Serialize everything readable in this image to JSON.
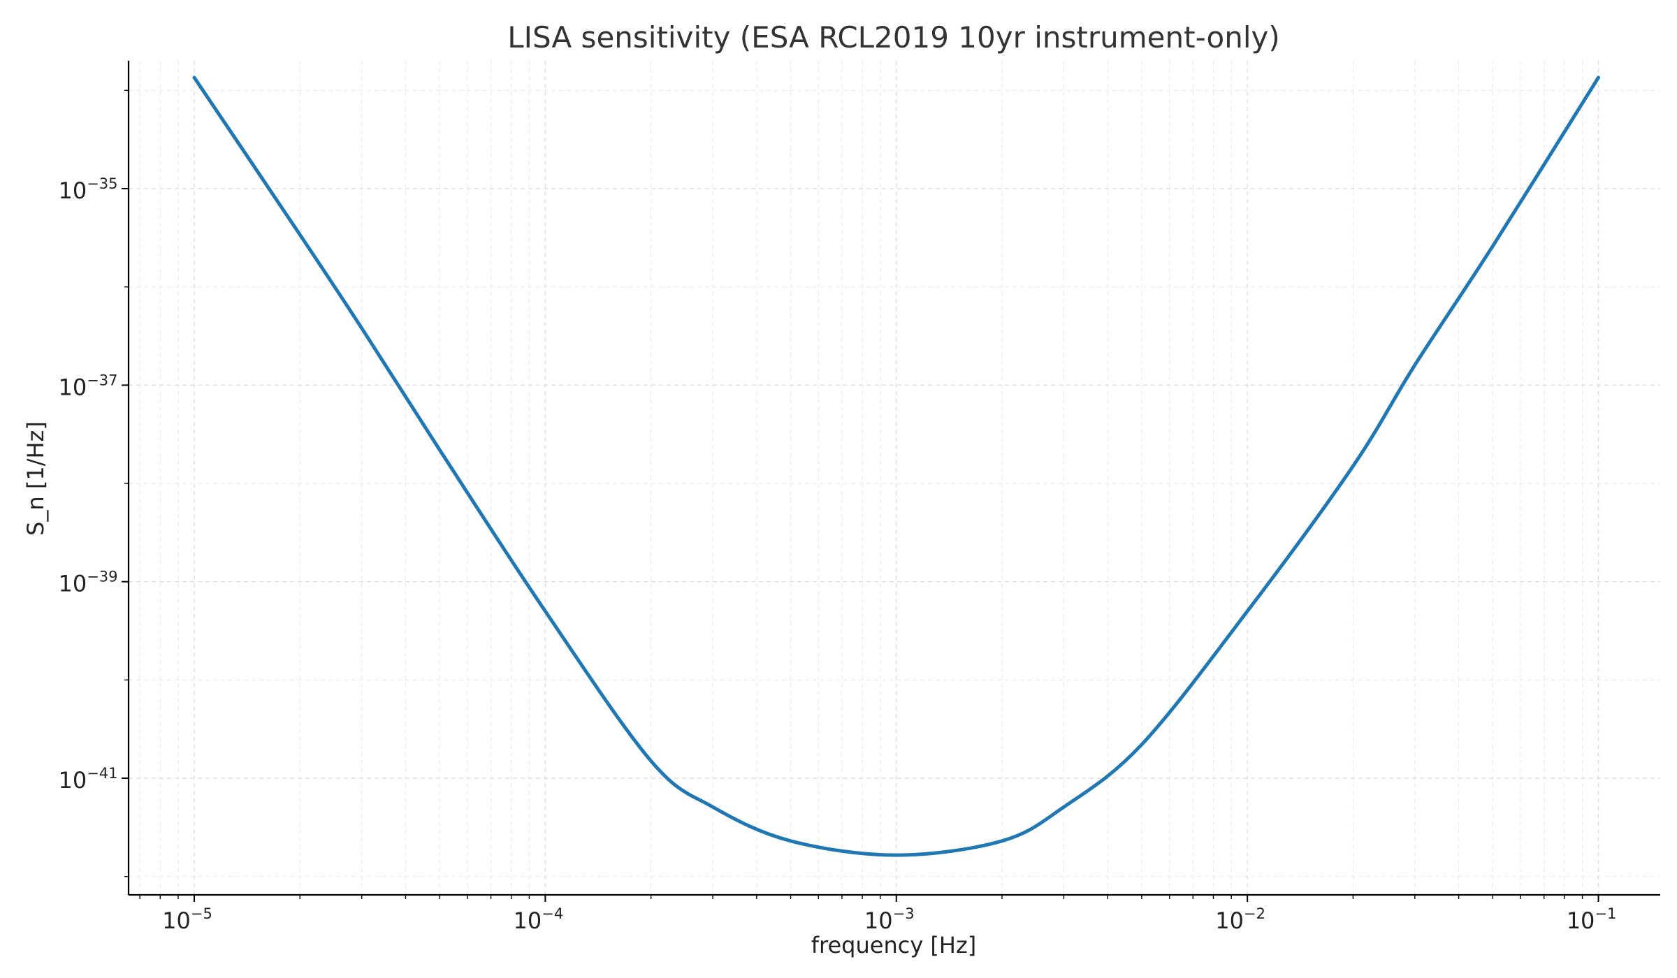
{
  "chart_data": {
    "type": "line",
    "title": "LISA sensitivity (ESA RCL2019 10yr instrument-only)",
    "xlabel": "frequency [Hz]",
    "ylabel": "S_n [1/Hz]",
    "xscale": "log",
    "yscale": "log",
    "xlim": [
      6.5e-06,
      0.15
    ],
    "ylim": [
      6.5e-43,
      2e-34
    ],
    "grid": true,
    "x_ticks": [
      {
        "value": 1e-05,
        "base": "10",
        "exp": "−5"
      },
      {
        "value": 0.0001,
        "base": "10",
        "exp": "−4"
      },
      {
        "value": 0.001,
        "base": "10",
        "exp": "−3"
      },
      {
        "value": 0.01,
        "base": "10",
        "exp": "−2"
      },
      {
        "value": 0.1,
        "base": "10",
        "exp": "−1"
      }
    ],
    "y_ticks": [
      {
        "value": 1e-35,
        "base": "10",
        "exp": "−35"
      },
      {
        "value": 1e-37,
        "base": "10",
        "exp": "−37"
      },
      {
        "value": 1e-39,
        "base": "10",
        "exp": "−39"
      },
      {
        "value": 1e-41,
        "base": "10",
        "exp": "−41"
      }
    ],
    "series": [
      {
        "color": "#1f77b4",
        "x": [
          1e-05,
          2e-05,
          3e-05,
          5e-05,
          0.0001,
          0.0002,
          0.0003,
          0.0005,
          0.001,
          0.002,
          0.003,
          0.005,
          0.01,
          0.02,
          0.03,
          0.05,
          0.1
        ],
        "y": [
          1.35e-34,
          3.4e-36,
          3.8e-37,
          2.2e-38,
          5e-40,
          1.5e-41,
          5.1e-42,
          2.3e-42,
          1.65e-42,
          2.3e-42,
          5.1e-42,
          2.2e-41,
          5e-40,
          1.5e-38,
          1.6e-37,
          2.6e-36,
          1.35e-34
        ]
      }
    ]
  }
}
